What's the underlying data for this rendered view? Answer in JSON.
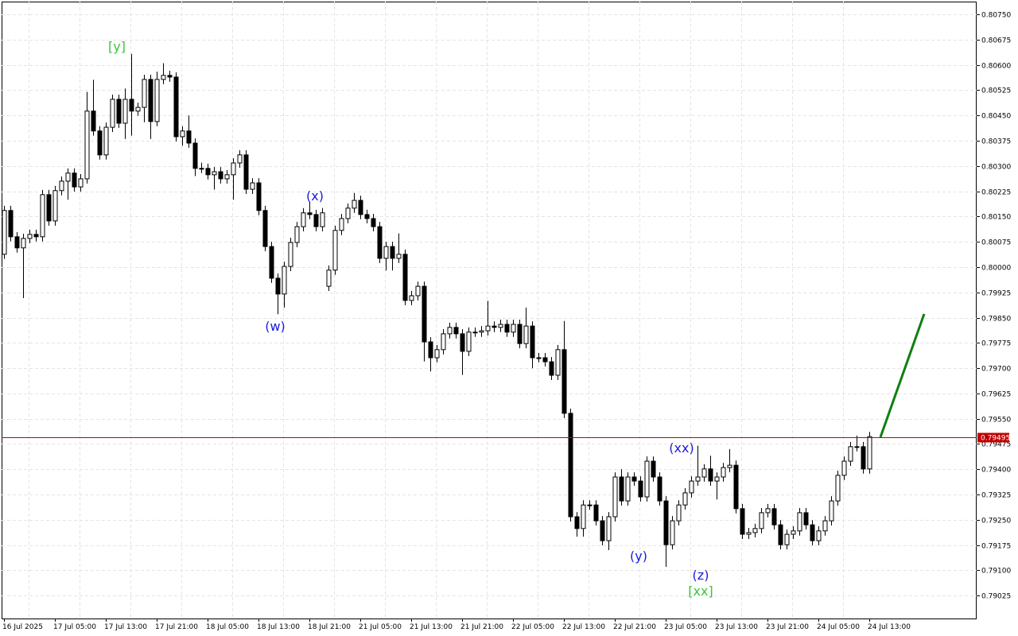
{
  "chart_data": {
    "type": "candlestick",
    "categories": [
      "16 Jul 2025",
      null,
      null,
      null,
      null,
      null,
      null,
      null,
      "17 Jul 05:00",
      null,
      null,
      null,
      null,
      null,
      null,
      null,
      "17 Jul 13:00",
      null,
      null,
      null,
      null,
      null,
      null,
      null,
      "17 Jul 21:00",
      null,
      null,
      null,
      null,
      null,
      null,
      null,
      "18 Jul 05:00",
      null,
      null,
      null,
      null,
      null,
      null,
      null,
      "18 Jul 13:00",
      null,
      null,
      null,
      null,
      null,
      null,
      null,
      "18 Jul 21:00",
      null,
      null,
      null,
      null,
      null,
      null,
      null,
      "21 Jul 05:00",
      null,
      null,
      null,
      null,
      null,
      null,
      null,
      "21 Jul 13:00",
      null,
      null,
      null,
      null,
      null,
      null,
      null,
      "21 Jul 21:00",
      null,
      null,
      null,
      null,
      null,
      null,
      null,
      "22 Jul 05:00",
      null,
      null,
      null,
      null,
      null,
      null,
      null,
      "22 Jul 13:00",
      null,
      null,
      null,
      null,
      null,
      null,
      null,
      "22 Jul 21:00",
      null,
      null,
      null,
      null,
      null,
      null,
      null,
      "23 Jul 05:00",
      null,
      null,
      null,
      null,
      null,
      null,
      null,
      "23 Jul 13:00",
      null,
      null,
      null,
      null,
      null,
      null,
      null,
      "23 Jul 21:00",
      null,
      null,
      null,
      null,
      null,
      null,
      null,
      "24 Jul 05:00",
      null,
      null,
      null,
      null,
      null,
      null,
      null,
      "24 Jul 13:00"
    ],
    "open": [
      0.80038,
      0.80168,
      0.8009,
      0.80057,
      0.80085,
      0.80097,
      0.8009,
      0.80215,
      0.80137,
      0.80227,
      0.80255,
      0.80279,
      0.80238,
      0.80262,
      0.80463,
      0.80404,
      0.80333,
      0.80415,
      0.80498,
      0.80427,
      0.80498,
      0.80463,
      0.80474,
      0.80557,
      0.80432,
      0.80557,
      0.80569,
      0.80564,
      0.80387,
      0.80404,
      0.80368,
      0.80293,
      0.80293,
      0.80274,
      0.80283,
      0.80262,
      0.80274,
      0.80309,
      0.80333,
      0.80231,
      0.8025,
      0.80168,
      0.80061,
      0.79967,
      0.7992,
      0.80002,
      0.80073,
      0.8012,
      0.80161,
      0.80156,
      0.8012,
      0.79943,
      0.79991,
      0.80109,
      0.80144,
      0.80175,
      0.80198,
      0.80156,
      0.80144,
      0.8012,
      0.80026,
      0.80061,
      0.80026,
      0.80038,
      0.79901,
      0.79915,
      0.79943,
      0.79778,
      0.79731,
      0.79755,
      0.79802,
      0.79821,
      0.79802,
      0.7975,
      0.79807,
      0.79807,
      0.79811,
      0.79825,
      0.79821,
      0.7983,
      0.79807,
      0.7983,
      0.79773,
      0.79825,
      0.79731,
      0.79731,
      0.79719,
      0.79679,
      0.79755,
      0.79566,
      0.79259,
      0.79224,
      0.79294,
      0.79294,
      0.79247,
      0.79188,
      0.79259,
      0.79377,
      0.79306,
      0.79377,
      0.79365,
      0.79318,
      0.79424,
      0.79377,
      0.79306,
      0.79176,
      0.79247,
      0.79294,
      0.7933,
      0.79365,
      0.79377,
      0.79401,
      0.79365,
      0.79377,
      0.79405,
      0.79412,
      0.79283,
      0.79207,
      0.79212,
      0.79224,
      0.79271,
      0.79283,
      0.79235,
      0.79176,
      0.79207,
      0.79217,
      0.79271,
      0.79235,
      0.79188,
      0.79217,
      0.79247,
      0.79306,
      0.79382,
      0.79424,
      0.79467,
      0.79467,
      0.79401
    ],
    "high": [
      0.80182,
      0.80182,
      0.80104,
      0.80099,
      0.80111,
      0.80111,
      0.80229,
      0.80229,
      0.80241,
      0.80269,
      0.80293,
      0.80293,
      0.80276,
      0.8052,
      0.80556,
      0.80418,
      0.80429,
      0.80512,
      0.80512,
      0.8053,
      0.80633,
      0.80488,
      0.80571,
      0.80571,
      0.8058,
      0.80605,
      0.80583,
      0.80578,
      0.80418,
      0.8045,
      0.80382,
      0.8031,
      0.80307,
      0.80297,
      0.80297,
      0.80288,
      0.80323,
      0.80347,
      0.80347,
      0.80264,
      0.80264,
      0.80182,
      0.80075,
      0.79981,
      0.80016,
      0.80087,
      0.80134,
      0.80175,
      0.80195,
      0.8017,
      0.80175,
      0.80005,
      0.80123,
      0.80158,
      0.80189,
      0.8022,
      0.80212,
      0.8017,
      0.80158,
      0.80134,
      0.80075,
      0.80075,
      0.801,
      0.80052,
      0.79929,
      0.79957,
      0.79957,
      0.79792,
      0.79769,
      0.79816,
      0.79835,
      0.79835,
      0.79816,
      0.79821,
      0.79821,
      0.79825,
      0.799,
      0.79839,
      0.79844,
      0.79844,
      0.79844,
      0.79844,
      0.7988,
      0.79839,
      0.79745,
      0.79745,
      0.79733,
      0.79769,
      0.7984,
      0.7958,
      0.79273,
      0.79308,
      0.79308,
      0.79308,
      0.79261,
      0.79273,
      0.79391,
      0.794,
      0.79391,
      0.79391,
      0.79379,
      0.79438,
      0.79438,
      0.79391,
      0.7932,
      0.79261,
      0.79308,
      0.79344,
      0.79379,
      0.7947,
      0.79415,
      0.7944,
      0.79391,
      0.79419,
      0.7946,
      0.79426,
      0.79297,
      0.79226,
      0.79238,
      0.79285,
      0.79297,
      0.79297,
      0.79249,
      0.79221,
      0.79231,
      0.79285,
      0.79285,
      0.79249,
      0.79231,
      0.79261,
      0.7932,
      0.79396,
      0.79438,
      0.79481,
      0.795,
      0.79481,
      0.79511
    ],
    "low": [
      0.80024,
      0.80076,
      0.80043,
      0.79908,
      0.80071,
      0.80076,
      0.80076,
      0.80123,
      0.80123,
      0.80213,
      0.802,
      0.80224,
      0.80224,
      0.80248,
      0.8039,
      0.80319,
      0.80319,
      0.80401,
      0.80413,
      0.8038,
      0.8039,
      0.80449,
      0.8043,
      0.8038,
      0.80418,
      0.80543,
      0.8055,
      0.80373,
      0.8036,
      0.80354,
      0.8027,
      0.80279,
      0.8026,
      0.8023,
      0.80248,
      0.80248,
      0.802,
      0.80295,
      0.80217,
      0.80217,
      0.80154,
      0.80047,
      0.79953,
      0.7986,
      0.7988,
      0.79988,
      0.80059,
      0.80106,
      0.80142,
      0.80106,
      0.80106,
      0.79929,
      0.79977,
      0.80095,
      0.8013,
      0.80161,
      0.80142,
      0.8013,
      0.80106,
      0.80012,
      0.7999,
      0.7999,
      0.80012,
      0.79887,
      0.79887,
      0.79901,
      0.7972,
      0.7969,
      0.79717,
      0.79741,
      0.79788,
      0.79788,
      0.7968,
      0.79736,
      0.79793,
      0.79793,
      0.79797,
      0.79807,
      0.79807,
      0.79793,
      0.79793,
      0.79759,
      0.79759,
      0.797,
      0.79717,
      0.79705,
      0.79665,
      0.79665,
      0.79552,
      0.79245,
      0.792,
      0.792,
      0.7928,
      0.79233,
      0.79174,
      0.7916,
      0.79245,
      0.79292,
      0.79292,
      0.79351,
      0.79304,
      0.79304,
      0.79363,
      0.79292,
      0.7911,
      0.79162,
      0.79233,
      0.7928,
      0.79316,
      0.79351,
      0.79363,
      0.79351,
      0.7931,
      0.79363,
      0.79391,
      0.79269,
      0.79193,
      0.79193,
      0.79198,
      0.7921,
      0.79257,
      0.79221,
      0.79162,
      0.79162,
      0.79193,
      0.79203,
      0.79221,
      0.79174,
      0.79174,
      0.79203,
      0.79233,
      0.79292,
      0.79368,
      0.7941,
      0.79453,
      0.79387,
      0.79387
    ],
    "close": [
      0.80168,
      0.8009,
      0.80057,
      0.80085,
      0.80097,
      0.8009,
      0.80215,
      0.80137,
      0.80227,
      0.80255,
      0.80279,
      0.80238,
      0.80262,
      0.80463,
      0.80404,
      0.80333,
      0.80415,
      0.80498,
      0.80427,
      0.80498,
      0.80463,
      0.80474,
      0.80557,
      0.80432,
      0.80557,
      0.80569,
      0.80564,
      0.80387,
      0.80404,
      0.80368,
      0.80293,
      0.80293,
      0.80274,
      0.80283,
      0.80262,
      0.80274,
      0.80309,
      0.80333,
      0.80231,
      0.8025,
      0.80168,
      0.80061,
      0.79967,
      0.7992,
      0.80002,
      0.80073,
      0.8012,
      0.80161,
      0.80156,
      0.8012,
      0.80161,
      0.79991,
      0.80109,
      0.80144,
      0.80175,
      0.80198,
      0.80156,
      0.80144,
      0.8012,
      0.80026,
      0.80061,
      0.80026,
      0.80038,
      0.79901,
      0.79915,
      0.79943,
      0.79778,
      0.79731,
      0.79755,
      0.79802,
      0.79821,
      0.79802,
      0.7975,
      0.79807,
      0.79807,
      0.79811,
      0.79825,
      0.79821,
      0.7983,
      0.79807,
      0.7983,
      0.79773,
      0.79825,
      0.79731,
      0.79731,
      0.79719,
      0.79679,
      0.79755,
      0.79566,
      0.79259,
      0.79224,
      0.79294,
      0.79294,
      0.79247,
      0.79188,
      0.79259,
      0.79377,
      0.79306,
      0.79377,
      0.79365,
      0.79318,
      0.79424,
      0.79377,
      0.79306,
      0.79176,
      0.79247,
      0.79294,
      0.7933,
      0.79365,
      0.79377,
      0.79401,
      0.79365,
      0.79377,
      0.79405,
      0.79412,
      0.79283,
      0.79207,
      0.79212,
      0.79224,
      0.79271,
      0.79283,
      0.79235,
      0.79176,
      0.79207,
      0.79217,
      0.79271,
      0.79235,
      0.79188,
      0.79217,
      0.79247,
      0.79306,
      0.79382,
      0.79424,
      0.79467,
      0.79467,
      0.79401,
      0.79497
    ],
    "up_color": "#ffffff",
    "down_color": "#000000",
    "ylim": [
      0.78957,
      0.80788
    ],
    "yticks": [
      0.79025,
      {
        "value": 0.791,
        "label": "0.79100"
      },
      0.79175,
      {
        "value": 0.7925,
        "label": "0.79250"
      },
      0.79325,
      {
        "value": 0.794,
        "label": "0.79400"
      },
      0.79475,
      {
        "value": 0.7955,
        "label": "0.79550"
      },
      0.79625,
      {
        "value": 0.797,
        "label": "0.79700"
      },
      0.79775,
      {
        "value": 0.7985,
        "label": "0.79850"
      },
      0.79925,
      {
        "value": 0.8,
        "label": "0.80000"
      },
      0.80075,
      {
        "value": 0.8015,
        "label": "0.80150"
      },
      0.80225,
      {
        "value": 0.803,
        "label": "0.80300"
      },
      0.80375,
      {
        "value": 0.8045,
        "label": "0.80450"
      },
      0.80525,
      {
        "value": 0.806,
        "label": "0.80600"
      },
      0.80675,
      {
        "value": 0.8075,
        "label": "0.80750"
      }
    ],
    "grid": true,
    "price_line": {
      "value": 0.79495,
      "label": "0.79495",
      "color": "#c00000"
    },
    "projection": {
      "color": "#0f7f0f",
      "values": [
        0.79495,
        0.79861
      ]
    },
    "annotations": [
      {
        "text": "[y]",
        "color": "#3cc43c"
      },
      {
        "text": "(x)",
        "color": "#1a1adc"
      },
      {
        "text": "(w)",
        "color": "#1a1adc"
      },
      {
        "text": "(xx)",
        "color": "#1a1adc"
      },
      {
        "text": "(y)",
        "color": "#1a1adc"
      },
      {
        "text": "(z)",
        "color": "#1a1adc"
      },
      {
        "text": "[xx]",
        "color": "#3cc43c"
      }
    ]
  }
}
